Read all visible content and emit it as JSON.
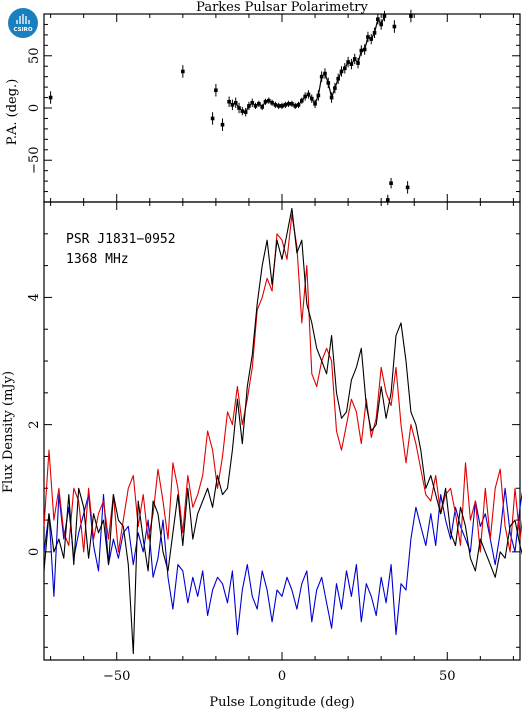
{
  "title": "Parkes Pulsar Polarimetry",
  "logo_text": "CSIRO",
  "chart_data": [
    {
      "type": "scatter",
      "name": "pa-panel",
      "ylabel": "P.A. (deg.)",
      "xlim": [
        -72,
        72
      ],
      "ylim": [
        -90,
        90
      ],
      "yticks": [
        -50,
        0,
        50
      ],
      "points": [
        {
          "x": -70,
          "y": 10,
          "err": 6
        },
        {
          "x": -30,
          "y": 35,
          "err": 6
        },
        {
          "x": -21,
          "y": -10,
          "err": 6
        },
        {
          "x": -20,
          "y": 17,
          "err": 6
        },
        {
          "x": -18,
          "y": -16,
          "err": 6
        },
        {
          "x": -16,
          "y": 6,
          "err": 5
        },
        {
          "x": -15,
          "y": 3,
          "err": 5
        },
        {
          "x": -14,
          "y": 5,
          "err": 5
        },
        {
          "x": -13,
          "y": 0,
          "err": 5
        },
        {
          "x": -12,
          "y": -3,
          "err": 4
        },
        {
          "x": -11,
          "y": -4,
          "err": 4
        },
        {
          "x": -10,
          "y": 2,
          "err": 4
        },
        {
          "x": -9,
          "y": 5,
          "err": 4
        },
        {
          "x": -8,
          "y": 2,
          "err": 3
        },
        {
          "x": -7,
          "y": 4,
          "err": 3
        },
        {
          "x": -6,
          "y": 1,
          "err": 3
        },
        {
          "x": -5,
          "y": 6,
          "err": 3
        },
        {
          "x": -4,
          "y": 7,
          "err": 3
        },
        {
          "x": -3,
          "y": 5,
          "err": 3
        },
        {
          "x": -2,
          "y": 3,
          "err": 3
        },
        {
          "x": -1,
          "y": 2,
          "err": 3
        },
        {
          "x": 0,
          "y": 2,
          "err": 3
        },
        {
          "x": 1,
          "y": 3,
          "err": 3
        },
        {
          "x": 2,
          "y": 4,
          "err": 3
        },
        {
          "x": 3,
          "y": 4,
          "err": 3
        },
        {
          "x": 4,
          "y": 2,
          "err": 3
        },
        {
          "x": 5,
          "y": 3,
          "err": 3
        },
        {
          "x": 6,
          "y": 7,
          "err": 3
        },
        {
          "x": 7,
          "y": 11,
          "err": 4
        },
        {
          "x": 8,
          "y": 13,
          "err": 4
        },
        {
          "x": 9,
          "y": 9,
          "err": 4
        },
        {
          "x": 10,
          "y": 4,
          "err": 4
        },
        {
          "x": 11,
          "y": 12,
          "err": 5
        },
        {
          "x": 12,
          "y": 30,
          "err": 5
        },
        {
          "x": 13,
          "y": 33,
          "err": 5
        },
        {
          "x": 14,
          "y": 24,
          "err": 5
        },
        {
          "x": 15,
          "y": 10,
          "err": 5
        },
        {
          "x": 16,
          "y": 19,
          "err": 5
        },
        {
          "x": 17,
          "y": 28,
          "err": 5
        },
        {
          "x": 18,
          "y": 35,
          "err": 5
        },
        {
          "x": 19,
          "y": 38,
          "err": 5
        },
        {
          "x": 20,
          "y": 44,
          "err": 5
        },
        {
          "x": 21,
          "y": 42,
          "err": 5
        },
        {
          "x": 22,
          "y": 47,
          "err": 5
        },
        {
          "x": 23,
          "y": 43,
          "err": 5
        },
        {
          "x": 24,
          "y": 55,
          "err": 5
        },
        {
          "x": 25,
          "y": 56,
          "err": 5
        },
        {
          "x": 26,
          "y": 68,
          "err": 5
        },
        {
          "x": 27,
          "y": 66,
          "err": 5
        },
        {
          "x": 28,
          "y": 72,
          "err": 5
        },
        {
          "x": 29,
          "y": 85,
          "err": 5
        },
        {
          "x": 30,
          "y": 80,
          "err": 5
        },
        {
          "x": 31,
          "y": 88,
          "err": 5
        },
        {
          "x": 32,
          "y": -88,
          "err": 5
        },
        {
          "x": 33,
          "y": -72,
          "err": 5
        },
        {
          "x": 34,
          "y": 78,
          "err": 6
        },
        {
          "x": 38,
          "y": -76,
          "err": 6
        },
        {
          "x": 39,
          "y": 88,
          "err": 6
        }
      ]
    },
    {
      "type": "line",
      "name": "profile-panel",
      "ylabel": "Flux Density (mJy)",
      "xlabel": "Pulse Longitude (deg)",
      "xlim": [
        -72,
        72
      ],
      "ylim": [
        -1.7,
        5.5
      ],
      "xticks": [
        -50,
        0,
        50
      ],
      "yticks": [
        0,
        2,
        4
      ],
      "annotations": [
        "PSR J1831−0952",
        "1368 MHz"
      ],
      "x_start": -72,
      "x_step": 1.5,
      "series": [
        {
          "color": "#000000",
          "values": [
            -0.3,
            0.6,
            0.0,
            0.2,
            -0.1,
            0.9,
            -0.2,
            1.0,
            0.7,
            -0.1,
            0.6,
            0.3,
            0.5,
            -0.2,
            0.9,
            0.5,
            0.4,
            -0.2,
            -1.6,
            0.8,
            0.2,
            -0.3,
            0.8,
            0.6,
            0.0,
            -0.3,
            0.3,
            0.9,
            0.1,
            1.0,
            0.2,
            0.6,
            0.8,
            1.0,
            0.7,
            1.2,
            0.9,
            1.0,
            1.6,
            2.4,
            1.7,
            2.6,
            3.1,
            3.9,
            4.5,
            4.9,
            4.2,
            4.9,
            4.6,
            5.0,
            5.4,
            4.7,
            4.9,
            3.9,
            3.6,
            3.2,
            3.0,
            2.8,
            3.4,
            2.5,
            2.1,
            2.2,
            2.7,
            2.9,
            3.2,
            2.3,
            1.9,
            2.0,
            2.6,
            2.1,
            2.5,
            3.4,
            3.6,
            3.0,
            2.2,
            2.0,
            1.6,
            1.0,
            1.2,
            0.9,
            0.6,
            1.0,
            0.3,
            0.1,
            0.7,
            0.4,
            -0.1,
            -0.3,
            0.2,
            0.0,
            -0.2,
            -0.4,
            0.0,
            -0.1,
            0.4,
            0.5,
            0.1,
            -0.2
          ]
        },
        {
          "color": "#e00000",
          "values": [
            0.4,
            1.6,
            0.5,
            1.0,
            0.3,
            0.1,
            1.0,
            0.8,
            0.0,
            1.0,
            0.2,
            0.6,
            0.8,
            0.2,
            0.9,
            0.0,
            0.5,
            1.0,
            1.2,
            0.4,
            0.9,
            0.2,
            0.6,
            1.3,
            0.8,
            0.2,
            1.4,
            1.0,
            0.3,
            1.2,
            0.7,
            0.9,
            1.2,
            1.9,
            1.6,
            1.0,
            1.5,
            2.2,
            2.0,
            2.6,
            2.0,
            2.4,
            2.9,
            3.8,
            4.0,
            4.3,
            4.1,
            5.0,
            4.9,
            4.6,
            5.3,
            4.8,
            3.6,
            4.5,
            2.8,
            2.6,
            3.0,
            3.2,
            3.0,
            1.9,
            1.6,
            2.0,
            2.4,
            2.2,
            1.7,
            2.4,
            1.8,
            2.1,
            2.9,
            2.5,
            2.3,
            2.9,
            2.0,
            1.4,
            2.0,
            1.7,
            1.3,
            0.9,
            0.8,
            1.2,
            0.6,
            0.9,
            1.0,
            0.6,
            0.1,
            1.4,
            0.5,
            0.8,
            0.0,
            1.0,
            0.2,
            1.0,
            1.3,
            0.4,
            0.0,
            1.0,
            0.2,
            0.8
          ]
        },
        {
          "color": "#0000d0",
          "values": [
            0.0,
            0.6,
            -0.7,
            0.9,
            0.2,
            0.7,
            -0.1,
            0.3,
            0.6,
            0.9,
            0.1,
            -0.3,
            0.9,
            -0.2,
            0.2,
            -0.1,
            0.3,
            0.4,
            -0.2,
            0.3,
            0.0,
            0.5,
            -0.4,
            -0.1,
            0.5,
            -0.4,
            -0.9,
            -0.2,
            -0.3,
            -0.8,
            -0.4,
            -0.7,
            -0.3,
            -1.0,
            -0.6,
            -0.4,
            -0.5,
            -0.8,
            -0.3,
            -1.3,
            -0.6,
            -0.2,
            -0.7,
            -0.9,
            -0.3,
            -0.6,
            -1.1,
            -0.6,
            -0.7,
            -0.4,
            -0.6,
            -0.9,
            -0.5,
            -0.3,
            -1.1,
            -0.6,
            -0.4,
            -0.8,
            -1.2,
            -0.5,
            -0.9,
            -0.3,
            -0.7,
            -0.2,
            -1.1,
            -0.5,
            -0.7,
            -1.0,
            -0.4,
            -0.8,
            -0.2,
            -1.3,
            -0.5,
            -0.6,
            0.2,
            0.7,
            0.4,
            0.1,
            0.6,
            0.1,
            0.9,
            0.5,
            0.2,
            0.7,
            0.4,
            0.2,
            0.0,
            0.8,
            0.4,
            0.6,
            0.2,
            -0.2,
            0.3,
            1.0,
            0.3,
            0.0,
            0.7,
            1.2
          ]
        }
      ]
    }
  ]
}
